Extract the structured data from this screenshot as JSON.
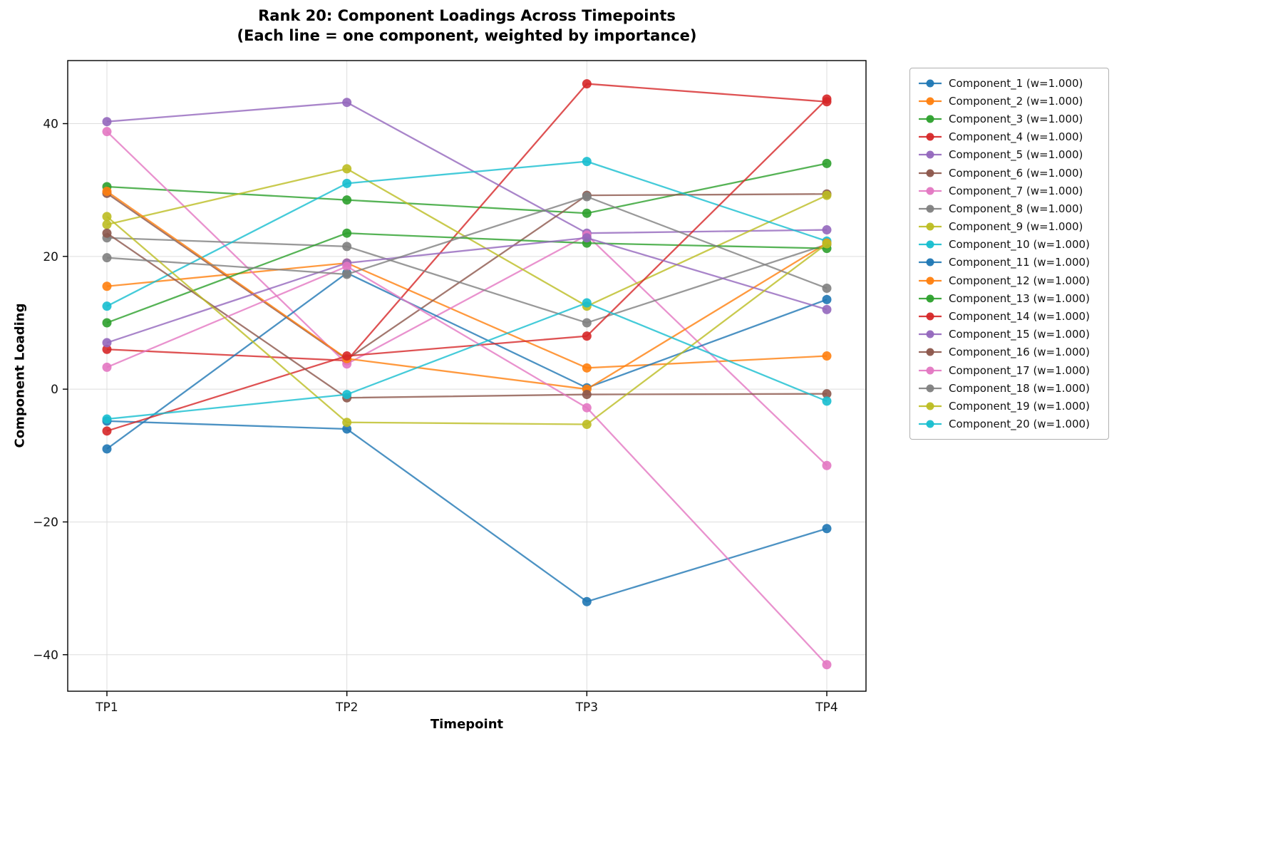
{
  "chart_data": {
    "type": "line",
    "title": "Rank 20: Component Loadings Across Timepoints",
    "subtitle": "(Each line = one component, weighted by importance)",
    "xlabel": "Timepoint",
    "ylabel": "Component Loading",
    "x_ticks": [
      "TP1",
      "TP2",
      "TP3",
      "TP4"
    ],
    "y_ticks": [
      -40,
      -20,
      0,
      20,
      40
    ],
    "y_tick_labels": [
      "−40",
      "−20",
      "0",
      "20",
      "40"
    ],
    "ylim": [
      -45.5,
      49.5
    ],
    "grid": true,
    "legend_position": "right",
    "series": [
      {
        "name": "Component_1 (w=1.000)",
        "color": "#1f77b4",
        "values": [
          -4.8,
          -6.0,
          -32.0,
          -21.0
        ]
      },
      {
        "name": "Component_2 (w=1.000)",
        "color": "#ff7f0e",
        "values": [
          15.5,
          19.0,
          3.2,
          5.0
        ]
      },
      {
        "name": "Component_3 (w=1.000)",
        "color": "#2ca02c",
        "values": [
          30.5,
          28.5,
          26.5,
          34.0
        ]
      },
      {
        "name": "Component_4 (w=1.000)",
        "color": "#d62728",
        "values": [
          6.0,
          4.3,
          46.0,
          43.3
        ]
      },
      {
        "name": "Component_5 (w=1.000)",
        "color": "#9467bd",
        "values": [
          40.3,
          43.2,
          23.5,
          24.0
        ]
      },
      {
        "name": "Component_6 (w=1.000)",
        "color": "#8c564b",
        "values": [
          29.5,
          4.5,
          29.2,
          29.4
        ]
      },
      {
        "name": "Component_7 (w=1.000)",
        "color": "#e377c2",
        "values": [
          38.8,
          3.8,
          23.2,
          -11.5
        ]
      },
      {
        "name": "Component_8 (w=1.000)",
        "color": "#7f7f7f",
        "values": [
          22.8,
          21.5,
          10.0,
          21.8
        ]
      },
      {
        "name": "Component_9 (w=1.000)",
        "color": "#bcbd22",
        "values": [
          24.8,
          33.2,
          12.5,
          29.2
        ]
      },
      {
        "name": "Component_10 (w=1.000)",
        "color": "#17becf",
        "values": [
          12.5,
          31.0,
          34.3,
          22.3
        ]
      },
      {
        "name": "Component_11 (w=1.000)",
        "color": "#1f77b4",
        "values": [
          -9.0,
          17.5,
          0.2,
          13.5
        ]
      },
      {
        "name": "Component_12 (w=1.000)",
        "color": "#ff7f0e",
        "values": [
          29.8,
          4.6,
          0.0,
          22.0
        ]
      },
      {
        "name": "Component_13 (w=1.000)",
        "color": "#2ca02c",
        "values": [
          10.0,
          23.5,
          22.0,
          21.2
        ]
      },
      {
        "name": "Component_14 (w=1.000)",
        "color": "#d62728",
        "values": [
          -6.3,
          5.0,
          8.0,
          43.7
        ]
      },
      {
        "name": "Component_15 (w=1.000)",
        "color": "#9467bd",
        "values": [
          7.0,
          19.0,
          22.8,
          12.0
        ]
      },
      {
        "name": "Component_16 (w=1.000)",
        "color": "#8c564b",
        "values": [
          23.5,
          -1.3,
          -0.8,
          -0.7
        ]
      },
      {
        "name": "Component_17 (w=1.000)",
        "color": "#e377c2",
        "values": [
          3.3,
          18.5,
          -2.8,
          -41.5
        ]
      },
      {
        "name": "Component_18 (w=1.000)",
        "color": "#7f7f7f",
        "values": [
          19.8,
          17.3,
          29.0,
          15.2
        ]
      },
      {
        "name": "Component_19 (w=1.000)",
        "color": "#bcbd22",
        "values": [
          26.0,
          -5.0,
          -5.3,
          21.9
        ]
      },
      {
        "name": "Component_20 (w=1.000)",
        "color": "#17becf",
        "values": [
          -4.5,
          -0.8,
          13.0,
          -1.8
        ]
      }
    ]
  }
}
